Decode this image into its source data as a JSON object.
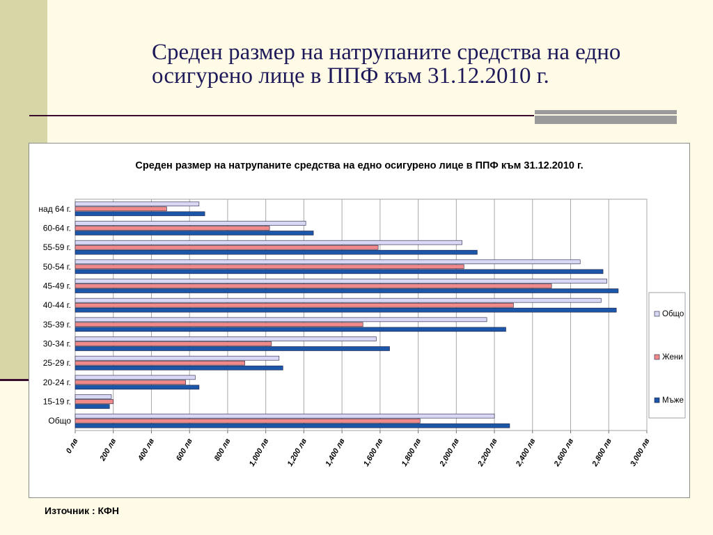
{
  "slide": {
    "title": "Среден размер на натрупаните средства на едно осигурено лице в ППФ към 31.12.2010 г.",
    "source": "Източник : КФН"
  },
  "chart_data": {
    "type": "bar",
    "orientation": "horizontal",
    "title": "Среден размер на натрупаните средства на едно осигурено лице в ППФ към 31.12.2010 г.",
    "categories": [
      "над 64 г.",
      "60-64 г.",
      "55-59 г.",
      "50-54 г.",
      "45-49 г.",
      "40-44 г.",
      "35-39 г.",
      "30-34 г.",
      "25-29 г.",
      "20-24 г.",
      "15-19 г.",
      "Общо"
    ],
    "series": [
      {
        "name": "Общо",
        "color": "#d8d8f4",
        "values": [
          650,
          1210,
          2030,
          2650,
          2790,
          2760,
          2160,
          1580,
          1070,
          630,
          190,
          2200
        ]
      },
      {
        "name": "Жени",
        "color": "#f08a8a",
        "values": [
          480,
          1020,
          1590,
          2040,
          2500,
          2300,
          1510,
          1030,
          890,
          580,
          200,
          1810
        ]
      },
      {
        "name": "Мъже",
        "color": "#1c56a8",
        "values": [
          680,
          1250,
          2110,
          2770,
          2850,
          2840,
          2260,
          1650,
          1090,
          650,
          180,
          2280
        ]
      }
    ],
    "xlim": [
      0,
      3000
    ],
    "xticks": [
      "0 лв",
      "200 лв",
      "400 лв",
      "600 лв",
      "800 лв",
      "1,000 лв",
      "1,200 лв",
      "1,400 лв",
      "1,600 лв",
      "1,800 лв",
      "2,000 лв",
      "2,200 лв",
      "2,400 лв",
      "2,600 лв",
      "2,800 лв",
      "3,000 лв"
    ],
    "grid": true,
    "legend_position": "right"
  }
}
